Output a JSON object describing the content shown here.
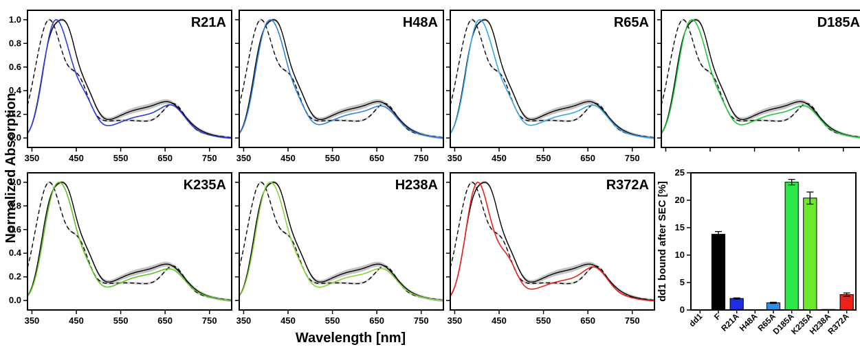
{
  "figure": {
    "ylabel": "Normalized Absorption",
    "xlabel": "Wavelength [nm]"
  },
  "chart_data": [
    {
      "type": "line",
      "title": "R21A",
      "xlim": [
        340,
        800
      ],
      "ylim": [
        -0.08,
        1.08
      ],
      "xticks": [
        350,
        450,
        550,
        650,
        750
      ],
      "yticks": [
        0.0,
        0.2,
        0.4,
        0.6,
        0.8,
        1.0
      ],
      "xtick_labels": [
        "350",
        "450",
        "550",
        "650",
        "750"
      ],
      "ytick_labels": [
        "0.0",
        "0.2",
        "0.4",
        "0.6",
        "0.8",
        "1.0"
      ],
      "mutant_color": "#2a3bdc"
    },
    {
      "type": "line",
      "title": "H48A",
      "xlim": [
        340,
        800
      ],
      "ylim": [
        -0.08,
        1.08
      ],
      "xticks": [
        350,
        450,
        550,
        650,
        750
      ],
      "yticks": [
        0.0,
        0.2,
        0.4,
        0.6,
        0.8,
        1.0
      ],
      "xtick_labels": [
        "350",
        "450",
        "550",
        "650",
        "750"
      ],
      "ytick_labels": [],
      "mutant_color": "#2f7fe0"
    },
    {
      "type": "line",
      "title": "R65A",
      "xlim": [
        340,
        800
      ],
      "ylim": [
        -0.08,
        1.08
      ],
      "xticks": [
        350,
        450,
        550,
        650,
        750
      ],
      "yticks": [
        0.0,
        0.2,
        0.4,
        0.6,
        0.8,
        1.0
      ],
      "xtick_labels": [
        "350",
        "450",
        "550",
        "650",
        "750"
      ],
      "ytick_labels": [],
      "mutant_color": "#35a4e8"
    },
    {
      "type": "line",
      "title": "D185A",
      "xlim": [
        340,
        800
      ],
      "ylim": [
        -0.08,
        1.08
      ],
      "xticks": [
        350,
        450,
        550,
        650,
        750
      ],
      "yticks": [
        0.0,
        0.2,
        0.4,
        0.6,
        0.8,
        1.0
      ],
      "xtick_labels": [],
      "ytick_labels": [],
      "mutant_color": "#22c93c"
    },
    {
      "type": "line",
      "title": "K235A",
      "xlim": [
        340,
        800
      ],
      "ylim": [
        -0.08,
        1.08
      ],
      "xticks": [
        350,
        450,
        550,
        650,
        750
      ],
      "yticks": [
        0.0,
        0.2,
        0.4,
        0.6,
        0.8,
        1.0
      ],
      "xtick_labels": [
        "350",
        "450",
        "550",
        "650",
        "750"
      ],
      "ytick_labels": [
        "0.0",
        "0.2",
        "0.4",
        "0.6",
        "0.8",
        "1.0"
      ],
      "mutant_color": "#5ec21e"
    },
    {
      "type": "line",
      "title": "H238A",
      "xlim": [
        340,
        800
      ],
      "ylim": [
        -0.08,
        1.08
      ],
      "xticks": [
        350,
        450,
        550,
        650,
        750
      ],
      "yticks": [
        0.0,
        0.2,
        0.4,
        0.6,
        0.8,
        1.0
      ],
      "xtick_labels": [
        "350",
        "450",
        "550",
        "650",
        "750"
      ],
      "ytick_labels": [],
      "mutant_color": "#86d63a"
    },
    {
      "type": "line",
      "title": "R372A",
      "xlim": [
        340,
        800
      ],
      "ylim": [
        -0.08,
        1.08
      ],
      "xticks": [
        350,
        450,
        550,
        650,
        750
      ],
      "yticks": [
        0.0,
        0.2,
        0.4,
        0.6,
        0.8,
        1.0
      ],
      "xtick_labels": [
        "350",
        "450",
        "550",
        "650",
        "750"
      ],
      "ytick_labels": [],
      "mutant_color": "#e8231e"
    },
    {
      "type": "bar",
      "ylabel": "dd1 bound after SEC [%]",
      "ylim": [
        0,
        25
      ],
      "yticks": [
        0,
        5,
        10,
        15,
        20,
        25
      ],
      "ytick_labels": [
        "0",
        "5",
        "10",
        "15",
        "20",
        "25"
      ],
      "categories": [
        "dd1",
        "F",
        "R21A",
        "H48A",
        "R65A",
        "D185A",
        "K235A",
        "H238A",
        "R372A"
      ],
      "values": [
        0,
        13.8,
        2.1,
        0,
        1.3,
        23.3,
        20.4,
        0.1,
        2.8
      ],
      "errors": [
        0,
        0.5,
        0.1,
        0,
        0.1,
        0.5,
        1.1,
        0,
        0.3
      ],
      "colors": [
        "#000000",
        "#000000",
        "#1f2fe0",
        "#1f2fe0",
        "#2a8fe6",
        "#2ee84a",
        "#6de82e",
        "#8ae83a",
        "#ee2218"
      ]
    }
  ]
}
